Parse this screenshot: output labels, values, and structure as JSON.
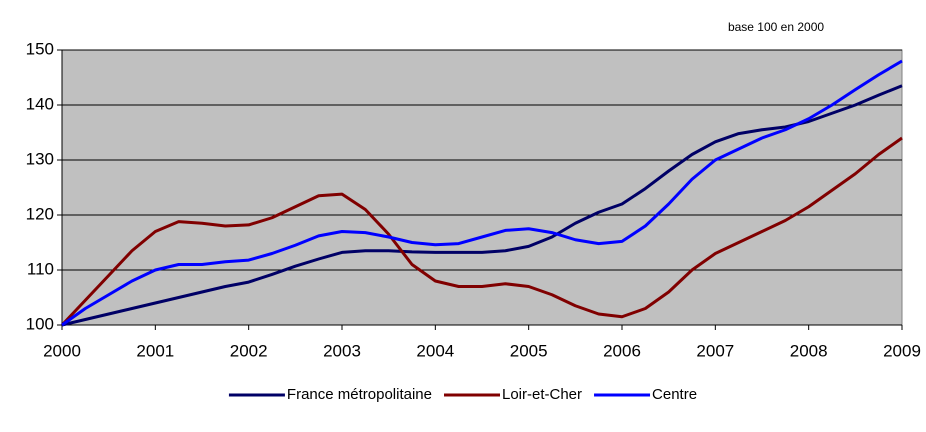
{
  "chart_data": {
    "type": "line",
    "annotation": "base 100 en 2000",
    "x": [
      2000,
      2000.25,
      2000.5,
      2000.75,
      2001,
      2001.25,
      2001.5,
      2001.75,
      2002,
      2002.25,
      2002.5,
      2002.75,
      2003,
      2003.25,
      2003.5,
      2003.75,
      2004,
      2004.25,
      2004.5,
      2004.75,
      2005,
      2005.25,
      2005.5,
      2005.75,
      2006,
      2006.25,
      2006.5,
      2006.75,
      2007,
      2007.25,
      2007.5,
      2007.75,
      2008,
      2008.25,
      2008.5,
      2008.75,
      2009
    ],
    "series": [
      {
        "name": "France métropolitaine",
        "color": "#000066",
        "values": [
          100,
          101,
          102,
          103,
          104,
          105,
          106,
          107,
          107.8,
          109.2,
          110.7,
          112,
          113.2,
          113.5,
          113.5,
          113.3,
          113.2,
          113.2,
          113.2,
          113.5,
          114.3,
          116,
          118.5,
          120.5,
          122,
          124.8,
          128,
          131,
          133.3,
          134.8,
          135.5,
          136,
          137,
          138.5,
          140,
          141.8,
          143.5
        ]
      },
      {
        "name": "Loir-et-Cher",
        "color": "#800000",
        "values": [
          100,
          104.5,
          109,
          113.5,
          117,
          118.8,
          118.5,
          118,
          118.2,
          119.5,
          121.5,
          123.5,
          123.8,
          121,
          116.5,
          111,
          108,
          107,
          107,
          107.5,
          107,
          105.5,
          103.5,
          102,
          101.5,
          103,
          106,
          110,
          113,
          115,
          117,
          119,
          121.5,
          124.5,
          127.5,
          131,
          134
        ]
      },
      {
        "name": "Centre",
        "color": "#0000FF",
        "values": [
          100,
          103,
          105.5,
          108,
          110,
          111,
          111,
          111.5,
          111.8,
          113,
          114.5,
          116.2,
          117,
          116.8,
          116,
          115,
          114.6,
          114.8,
          116,
          117.2,
          117.5,
          116.8,
          115.5,
          114.8,
          115.2,
          118,
          122,
          126.5,
          130,
          132,
          134,
          135.5,
          137.5,
          140,
          142.8,
          145.5,
          148
        ]
      }
    ],
    "xlim": [
      2000,
      2009
    ],
    "xticks": [
      2000,
      2001,
      2002,
      2003,
      2004,
      2005,
      2006,
      2007,
      2008,
      2009
    ],
    "ylim": [
      100,
      150
    ],
    "yticks": [
      100,
      110,
      120,
      130,
      140,
      150
    ],
    "grid": true,
    "plot_background": "#C0C0C0",
    "legend": "bottom"
  }
}
